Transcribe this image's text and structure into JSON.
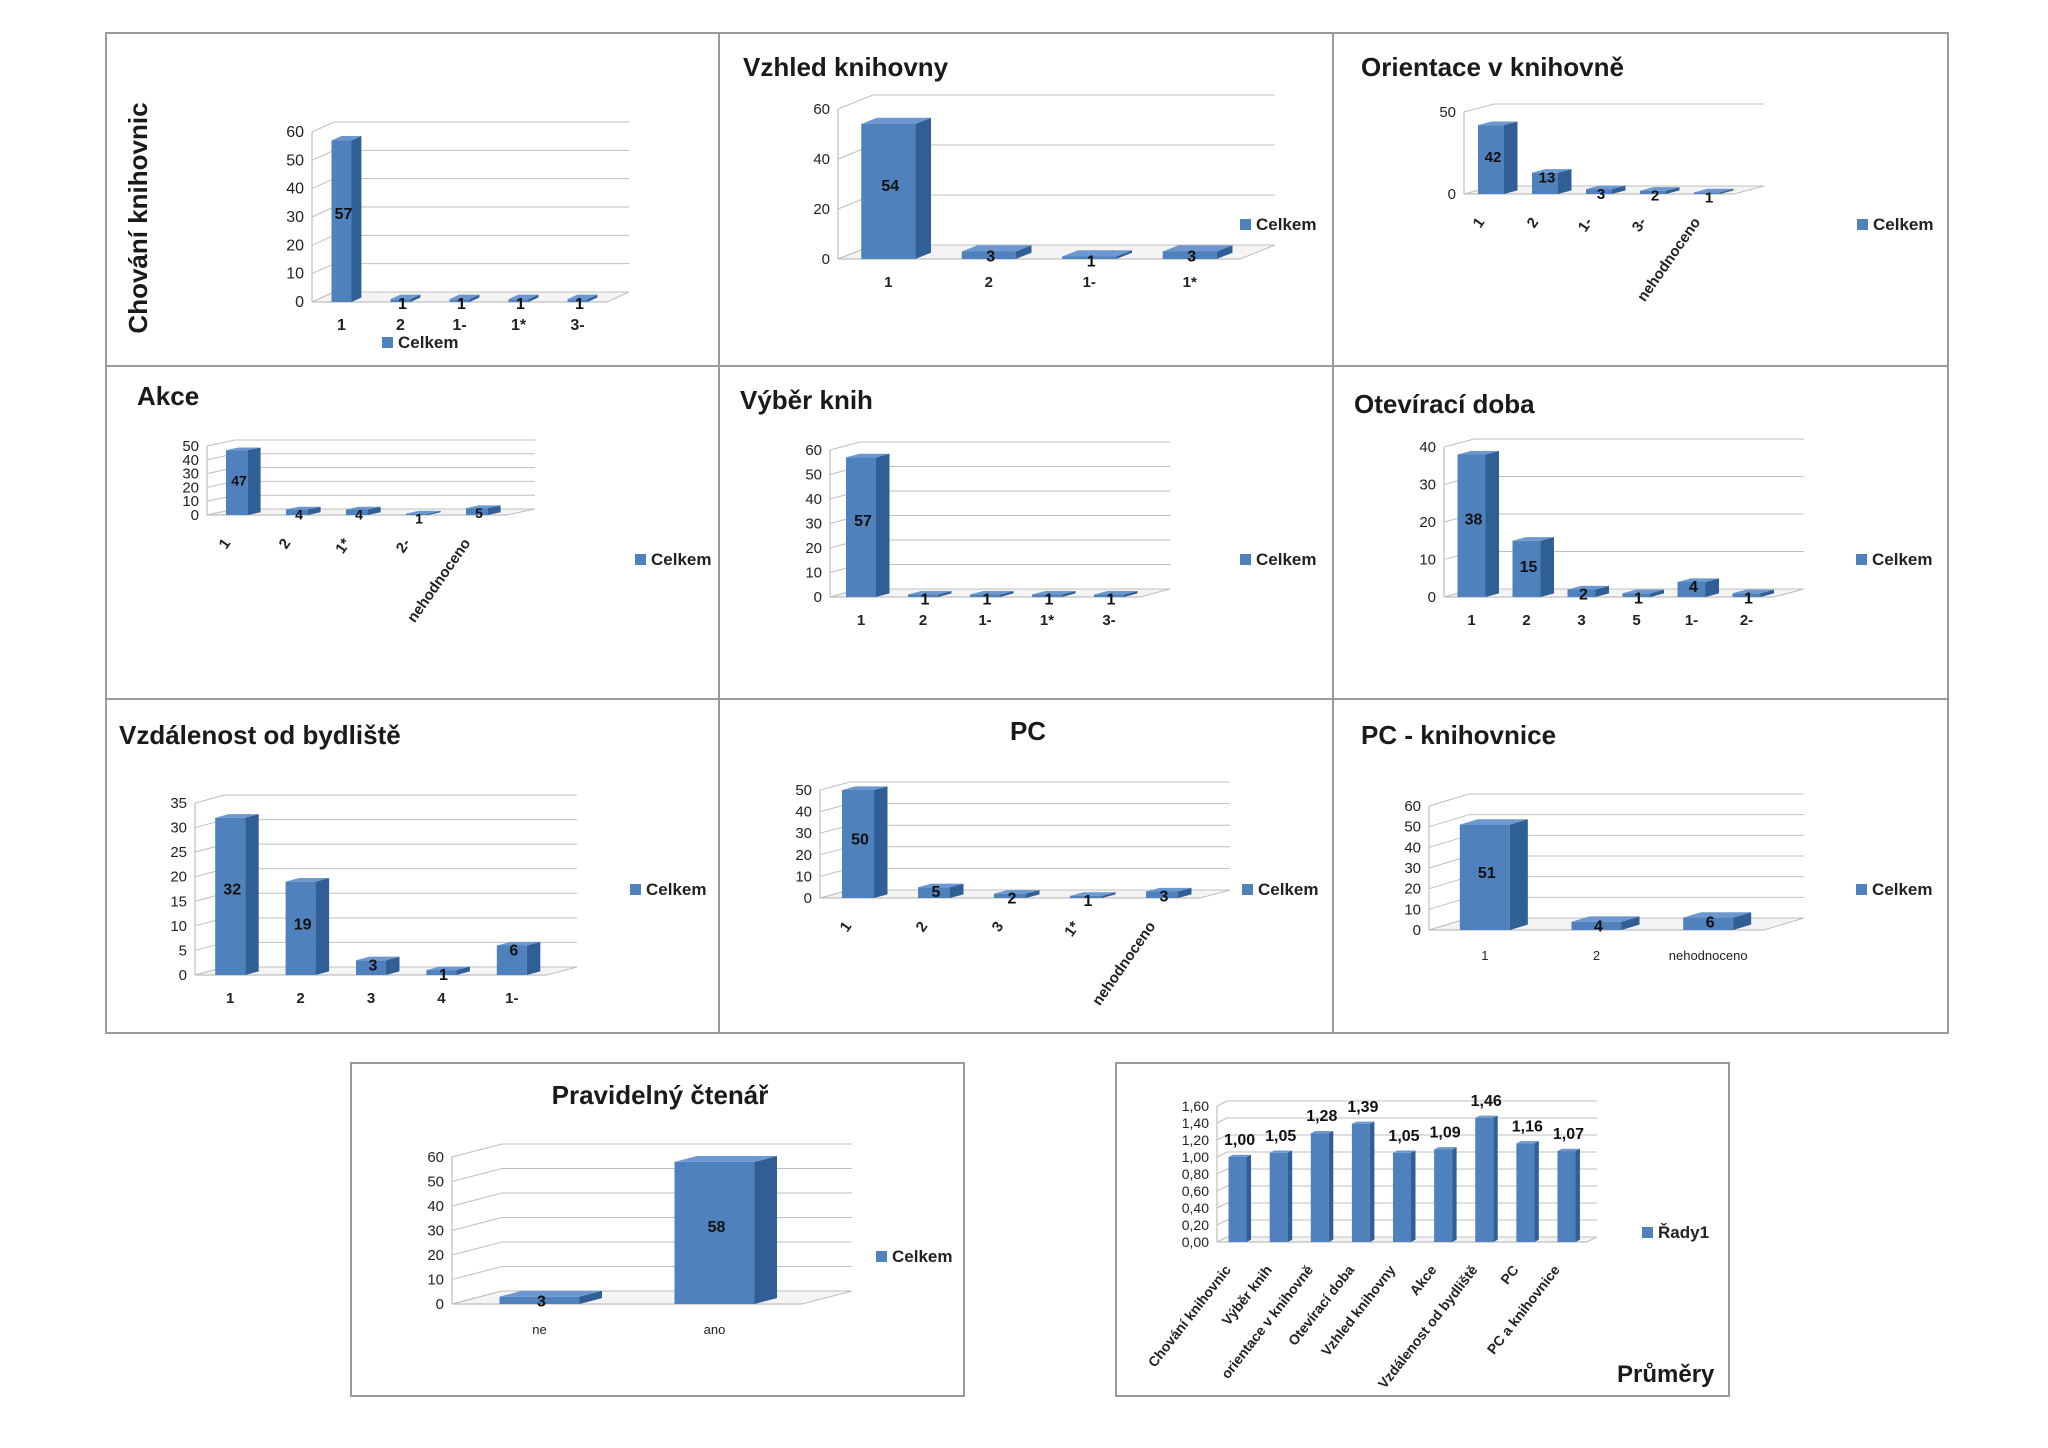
{
  "colors": {
    "bar_front": "#4f81bd",
    "bar_side": "#2f5f95",
    "bar_top": "#6c98cf",
    "grid": "#bfbfbf",
    "text": "#1a1a1a"
  },
  "chart_data": [
    {
      "id": "chovani",
      "type": "bar",
      "title": "Chování knihovnic",
      "title_orientation": "vertical",
      "legend": "Celkem",
      "legend_position": "bottom",
      "categories": [
        "1",
        "2",
        "1-",
        "1*",
        "3-"
      ],
      "values": [
        57,
        1,
        1,
        1,
        1
      ],
      "yticks": [
        0,
        10,
        20,
        30,
        40,
        50,
        60
      ],
      "ylim": [
        0,
        60
      ]
    },
    {
      "id": "vzhled",
      "type": "bar",
      "title": "Vzhled knihovny",
      "legend": "Celkem",
      "legend_position": "right",
      "categories": [
        "1",
        "2",
        "1-",
        "1*"
      ],
      "values": [
        54,
        3,
        1,
        3
      ],
      "yticks": [
        0,
        20,
        40,
        60
      ],
      "ylim": [
        0,
        60
      ]
    },
    {
      "id": "orientace",
      "type": "bar",
      "title": "Orientace v knihovně",
      "legend": "Celkem",
      "legend_position": "right",
      "categories": [
        "1",
        "2",
        "1-",
        "3-",
        "nehodnoceno"
      ],
      "values": [
        42,
        13,
        3,
        2,
        1
      ],
      "yticks": [
        0,
        50
      ],
      "ylim": [
        0,
        50
      ]
    },
    {
      "id": "akce",
      "type": "bar",
      "title": "Akce",
      "legend": "Celkem",
      "legend_position": "right",
      "categories": [
        "1",
        "2",
        "1*",
        "2-",
        "nehodnoceno"
      ],
      "values": [
        47,
        4,
        4,
        1,
        5
      ],
      "yticks": [
        0,
        10,
        20,
        30,
        40,
        50
      ],
      "ylim": [
        0,
        50
      ]
    },
    {
      "id": "vyber",
      "type": "bar",
      "title": "Výběr knih",
      "legend": "Celkem",
      "legend_position": "right",
      "categories": [
        "1",
        "2",
        "1-",
        "1*",
        "3-"
      ],
      "values": [
        57,
        1,
        1,
        1,
        1
      ],
      "yticks": [
        0,
        10,
        20,
        30,
        40,
        50,
        60
      ],
      "ylim": [
        0,
        60
      ]
    },
    {
      "id": "oteviraci",
      "type": "bar",
      "title": "Otevírací doba",
      "legend": "Celkem",
      "legend_position": "right",
      "categories": [
        "1",
        "2",
        "3",
        "5",
        "1-",
        "2-"
      ],
      "values": [
        38,
        15,
        2,
        1,
        4,
        1
      ],
      "yticks": [
        0,
        10,
        20,
        30,
        40
      ],
      "ylim": [
        0,
        40
      ]
    },
    {
      "id": "vzdalenost",
      "type": "bar",
      "title": "Vzdálenost od bydliště",
      "legend": "Celkem",
      "legend_position": "right",
      "categories": [
        "1",
        "2",
        "3",
        "4",
        "1-"
      ],
      "values": [
        32,
        19,
        3,
        1,
        6
      ],
      "yticks": [
        0,
        5,
        10,
        15,
        20,
        25,
        30,
        35
      ],
      "ylim": [
        0,
        35
      ]
    },
    {
      "id": "pc",
      "type": "bar",
      "title": "PC",
      "legend": "Celkem",
      "legend_position": "right",
      "categories": [
        "1",
        "2",
        "3",
        "1*",
        "nehodnoceno"
      ],
      "values": [
        50,
        5,
        2,
        1,
        3
      ],
      "yticks": [
        0,
        10,
        20,
        30,
        40,
        50
      ],
      "ylim": [
        0,
        50
      ]
    },
    {
      "id": "pcknih",
      "type": "bar",
      "title": "PC - knihovnice",
      "legend": "Celkem",
      "legend_position": "right",
      "categories": [
        "1",
        "2",
        "nehodnoceno"
      ],
      "values": [
        51,
        4,
        6
      ],
      "yticks": [
        0,
        10,
        20,
        30,
        40,
        50,
        60
      ],
      "ylim": [
        0,
        60
      ]
    },
    {
      "id": "ctenar",
      "type": "bar",
      "title": "Pravidelný čtenář",
      "legend": "Celkem",
      "legend_position": "right",
      "categories": [
        "ne",
        "ano"
      ],
      "values": [
        3,
        58
      ],
      "yticks": [
        0,
        10,
        20,
        30,
        40,
        50,
        60
      ],
      "ylim": [
        0,
        60
      ]
    },
    {
      "id": "prumery",
      "type": "bar",
      "title": "Průměry",
      "legend": "Řady1",
      "legend_position": "right",
      "categories": [
        "Chování knihovnic",
        "Výběr knih",
        "orientace v knihovně",
        "Otevírací doba",
        "Vzhled knihovny",
        "Akce",
        "Vzdálenost od bydliště",
        "PC",
        "PC a knihovnice"
      ],
      "values": [
        1.0,
        1.05,
        1.28,
        1.39,
        1.05,
        1.09,
        1.46,
        1.16,
        1.07
      ],
      "value_labels": [
        "1,00",
        "1,05",
        "1,28",
        "1,39",
        "1,05",
        "1,09",
        "1,46",
        "1,16",
        "1,07"
      ],
      "yticks": [
        0,
        0.2,
        0.4,
        0.6,
        0.8,
        1.0,
        1.2,
        1.4,
        1.6
      ],
      "ytick_labels": [
        "0,00",
        "0,20",
        "0,40",
        "0,60",
        "0,80",
        "1,00",
        "1,20",
        "1,40",
        "1,60"
      ],
      "ylim": [
        0,
        1.6
      ]
    }
  ]
}
